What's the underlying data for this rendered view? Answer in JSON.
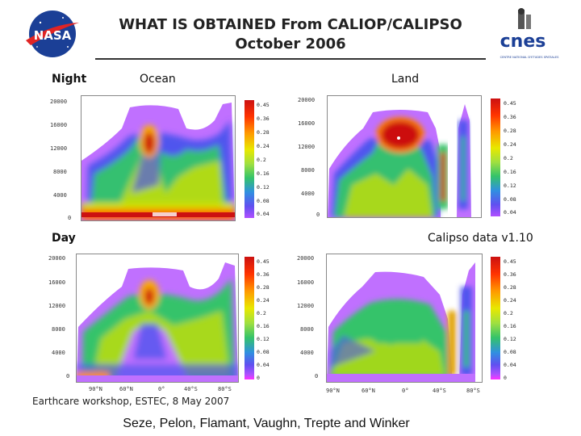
{
  "header": {
    "title_line1": "WHAT IS OBTAINED From CALIOP/CALIPSO",
    "title_line2": "October 2006",
    "left_logo_text": "NASA",
    "right_logo_text": "cnes",
    "right_logo_subtext": "CENTRE NATIONAL D'ETUDES SPATIALES"
  },
  "labels": {
    "night": "Night",
    "ocean": "Ocean",
    "land": "Land",
    "day": "Day",
    "version": "Calipso data v1.10",
    "workshop": "Earthcare workshop, ESTEC, 8 May 2007",
    "authors": "Seze, Pelon, Flamant, Vaughn, Trepte and Winker"
  },
  "panels": {
    "night_ocean": {
      "yticks": [
        "20000",
        "16000",
        "12000",
        "8000",
        "4000",
        "0"
      ],
      "cbar": [
        "0.45",
        "0.36",
        "0.28",
        "0.24",
        "0.2",
        "0.16",
        "0.12",
        "0.08",
        "0.04"
      ]
    },
    "night_land": {
      "yticks": [
        "20000",
        "16000",
        "12000",
        "8000",
        "4000",
        "0"
      ],
      "cbar": [
        "0.45",
        "0.36",
        "0.28",
        "0.24",
        "0.2",
        "0.16",
        "0.12",
        "0.08",
        "0.04"
      ]
    },
    "day_ocean": {
      "yticks": [
        "20000",
        "16000",
        "12000",
        "8000",
        "4000",
        "0"
      ],
      "cbar": [
        "0.45",
        "0.36",
        "0.28",
        "0.24",
        "0.2",
        "0.16",
        "0.12",
        "0.08",
        "0.04",
        "0"
      ],
      "xticks": [
        "90°N",
        "60°N",
        "0°",
        "40°S",
        "80°S"
      ]
    },
    "day_land": {
      "yticks": [
        "20000",
        "16000",
        "12000",
        "8000",
        "4000",
        "0"
      ],
      "cbar": [
        "0.45",
        "0.36",
        "0.28",
        "0.24",
        "0.2",
        "0.16",
        "0.12",
        "0.08",
        "0.04",
        "0"
      ],
      "xticks": [
        "90°N",
        "60°N",
        "0°",
        "40°S",
        "80°S"
      ]
    }
  },
  "colors": {
    "purple": "#9b30ff",
    "blue": "#4b50f0",
    "green": "#34c36a",
    "yellow": "#e0e000",
    "orange": "#ff8c00",
    "red": "#cc1111"
  }
}
